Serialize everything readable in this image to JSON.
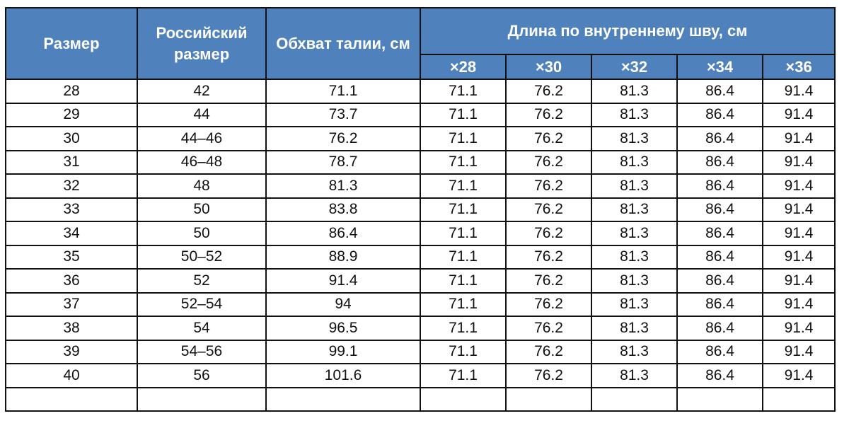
{
  "table": {
    "headers": {
      "size": "Размер",
      "russian_size": "Российский размер",
      "waist": "Обхват талии, см",
      "inseam": "Длина по внутреннему шву, см",
      "inseam_sub": [
        "×28",
        "×30",
        "×32",
        "×34",
        "×36"
      ]
    },
    "header_color": "#4f81bd",
    "rows": [
      [
        "28",
        "42",
        "71.1",
        "71.1",
        "76.2",
        "81.3",
        "86.4",
        "91.4"
      ],
      [
        "29",
        "44",
        "73.7",
        "71.1",
        "76.2",
        "81.3",
        "86.4",
        "91.4"
      ],
      [
        "30",
        "44–46",
        "76.2",
        "71.1",
        "76.2",
        "81.3",
        "86.4",
        "91.4"
      ],
      [
        "31",
        "46–48",
        "78.7",
        "71.1",
        "76.2",
        "81.3",
        "86.4",
        "91.4"
      ],
      [
        "32",
        "48",
        "81.3",
        "71.1",
        "76.2",
        "81.3",
        "86.4",
        "91.4"
      ],
      [
        "33",
        "50",
        "83.8",
        "71.1",
        "76.2",
        "81.3",
        "86.4",
        "91.4"
      ],
      [
        "34",
        "50",
        "86.4",
        "71.1",
        "76.2",
        "81.3",
        "86.4",
        "91.4"
      ],
      [
        "35",
        "50–52",
        "88.9",
        "71.1",
        "76.2",
        "81.3",
        "86.4",
        "91.4"
      ],
      [
        "36",
        "52",
        "91.4",
        "71.1",
        "76.2",
        "81.3",
        "86.4",
        "91.4"
      ],
      [
        "37",
        "52–54",
        "94",
        "71.1",
        "76.2",
        "81.3",
        "86.4",
        "91.4"
      ],
      [
        "38",
        "54",
        "96.5",
        "71.1",
        "76.2",
        "81.3",
        "86.4",
        "91.4"
      ],
      [
        "39",
        "54–56",
        "99.1",
        "71.1",
        "76.2",
        "81.3",
        "86.4",
        "91.4"
      ],
      [
        "40",
        "56",
        "101.6",
        "71.1",
        "76.2",
        "81.3",
        "86.4",
        "91.4"
      ],
      [
        "",
        "",
        "",
        "",
        "",
        "",
        "",
        ""
      ]
    ]
  }
}
